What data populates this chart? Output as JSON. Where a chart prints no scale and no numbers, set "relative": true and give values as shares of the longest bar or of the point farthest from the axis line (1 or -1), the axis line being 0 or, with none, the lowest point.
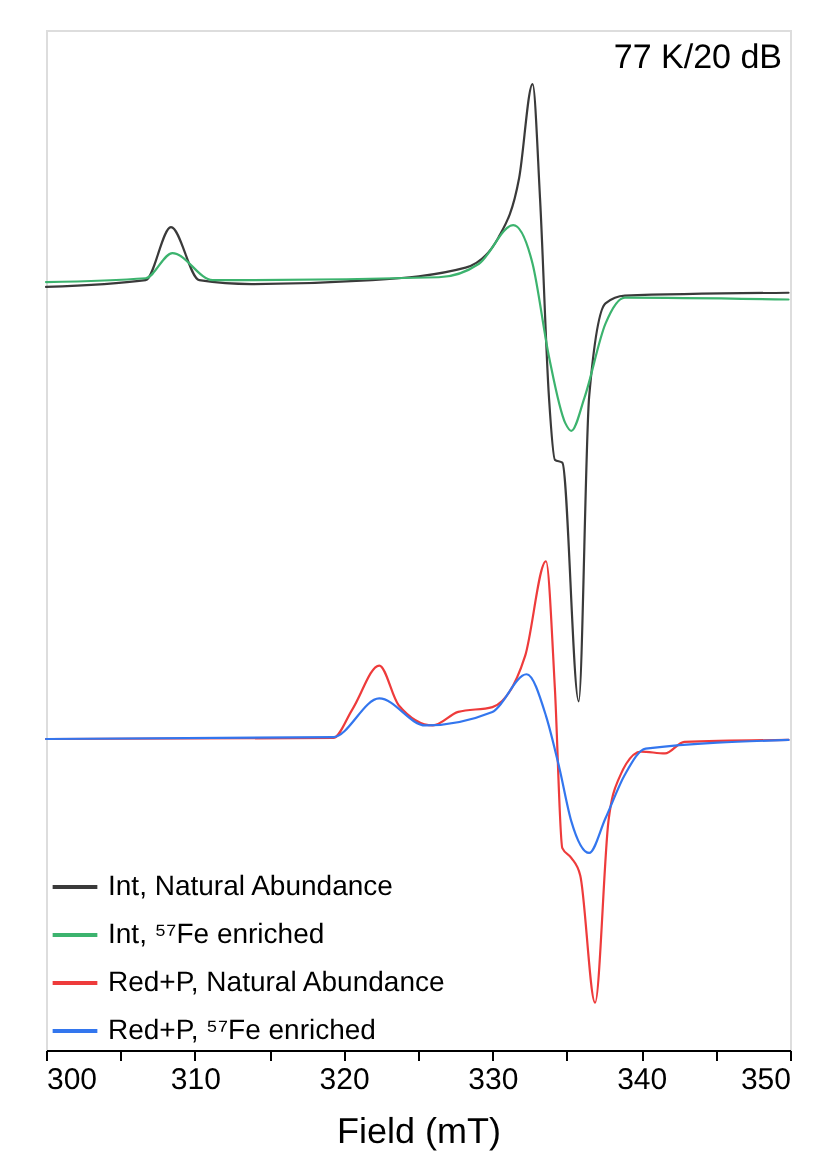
{
  "chart_data": {
    "type": "line",
    "relative": true,
    "xlabel": "Field (mT)",
    "annotations": [
      "77 K/20 dB"
    ],
    "xlim": [
      300,
      350
    ],
    "xticks": [
      300,
      {
        "value": 305,
        "label": null
      },
      310,
      {
        "value": 315,
        "label": null
      },
      320,
      {
        "value": 325,
        "label": null
      },
      330,
      {
        "value": 335,
        "label": null
      },
      340,
      {
        "value": 345,
        "label": null
      },
      350
    ],
    "grid": false,
    "legend": "bottom left",
    "line_style": "solid",
    "marker": "none",
    "series": [
      {
        "name": "Int, Natural Abundance",
        "color": "#3a3a3a",
        "x": [
          300,
          306.7,
          308.4,
          310.3,
          313.8,
          321.9,
          328.2,
          330.4,
          331.8,
          332.7,
          333.2,
          333.8,
          334.2,
          334.7,
          335.8,
          336.5,
          337.6,
          338.9,
          349.9
        ],
        "values": [
          0.79,
          0.797,
          0.852,
          0.797,
          0.793,
          0.797,
          0.81,
          0.841,
          0.903,
          1.0,
          0.882,
          0.676,
          0.611,
          0.608,
          0.361,
          0.676,
          0.773,
          0.781,
          0.784
        ]
      },
      {
        "name": "Int, ⁵⁷Fe enriched",
        "color": "#3cb36e",
        "x": [
          300,
          306.7,
          308.5,
          311.2,
          326.4,
          329.1,
          331.4,
          332.7,
          333.8,
          334.9,
          335.3,
          336.2,
          337.6,
          338.9,
          349.9
        ],
        "values": [
          0.795,
          0.799,
          0.825,
          0.797,
          0.8,
          0.814,
          0.854,
          0.814,
          0.718,
          0.649,
          0.641,
          0.676,
          0.752,
          0.779,
          0.777
        ]
      },
      {
        "name": "Red+P, Natural Abundance",
        "color": "#ee3b3b",
        "x": [
          300,
          319.3,
          320.6,
          322.4,
          323.7,
          326.0,
          327.7,
          330.0,
          332.2,
          333.6,
          334.2,
          334.7,
          335.3,
          335.9,
          336.9,
          337.8,
          338.5,
          340.0,
          341.6,
          342.9,
          349.9
        ],
        "values": [
          0.322,
          0.323,
          0.353,
          0.398,
          0.357,
          0.336,
          0.35,
          0.355,
          0.408,
          0.506,
          0.374,
          0.209,
          0.199,
          0.181,
          0.049,
          0.237,
          0.281,
          0.309,
          0.307,
          0.319,
          0.321
        ]
      },
      {
        "name": "Red+P, ⁵⁷Fe enriched",
        "color": "#3376ee",
        "x": [
          300,
          319.3,
          322.4,
          325.5,
          330.0,
          332.3,
          333.6,
          334.5,
          335.3,
          336.5,
          337.6,
          338.9,
          340.3,
          349.9
        ],
        "values": [
          0.322,
          0.324,
          0.364,
          0.336,
          0.35,
          0.389,
          0.346,
          0.292,
          0.237,
          0.204,
          0.24,
          0.285,
          0.312,
          0.321
        ]
      }
    ]
  }
}
